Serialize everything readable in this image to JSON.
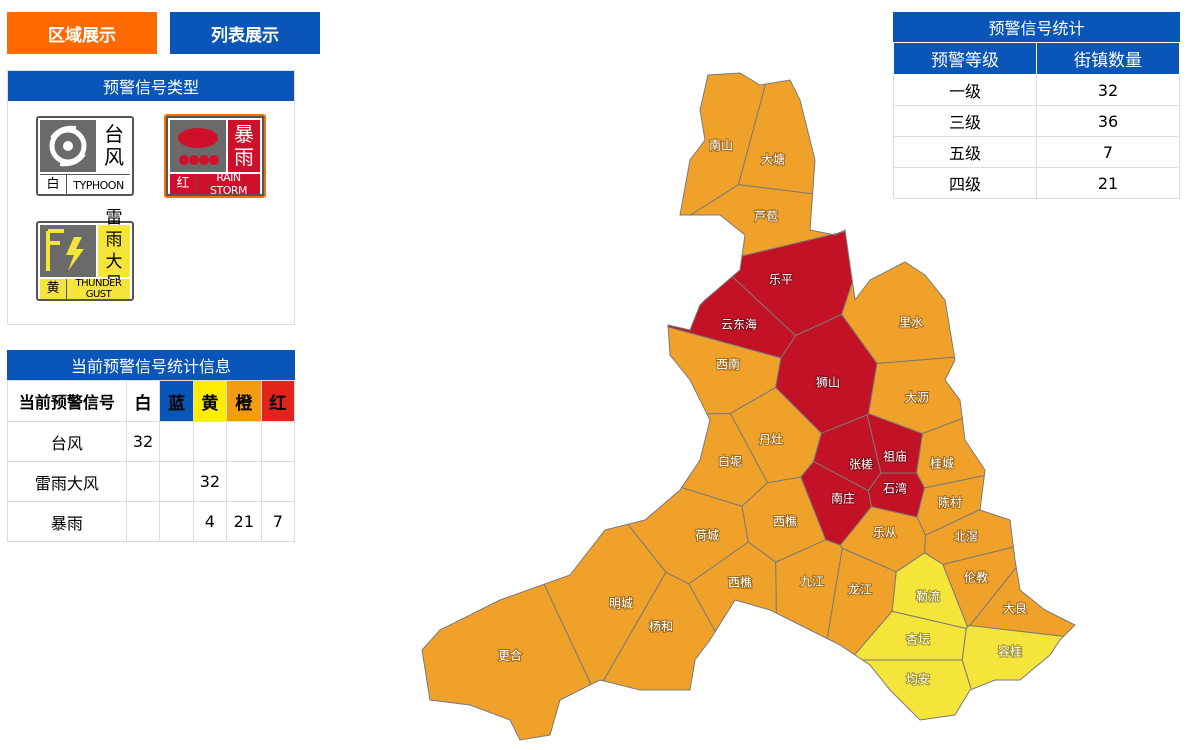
{
  "tabs": [
    "区域展示",
    "列表展示"
  ],
  "signal_types": {
    "title": "预警信号类型",
    "items": [
      {
        "name": "台风",
        "level": "白",
        "en": "TYPHOON"
      },
      {
        "name": "暴雨",
        "level": "红",
        "en": "RAIN STORM"
      },
      {
        "name": "雷雨大风",
        "level": "黄",
        "en": "THUNDER GUST"
      }
    ]
  },
  "current_stats": {
    "title": "当前预警信号统计信息",
    "header": [
      "当前预警信号",
      "白",
      "蓝",
      "黄",
      "橙",
      "红"
    ],
    "rows": [
      [
        "台风",
        32,
        null,
        null,
        null,
        null
      ],
      [
        "雷雨大风",
        null,
        null,
        32,
        null,
        null
      ],
      [
        "暴雨",
        null,
        null,
        4,
        21,
        7
      ]
    ]
  },
  "summary": {
    "title": "预警信号统计",
    "header": [
      "预警等级",
      "街镇数量"
    ],
    "rows": [
      [
        "一级",
        32
      ],
      [
        "三级",
        36
      ],
      [
        "五级",
        7
      ],
      [
        "四级",
        21
      ]
    ]
  },
  "map": {
    "regions": [
      {
        "name": "南山",
        "color": "#f0a12a"
      },
      {
        "name": "大塘",
        "color": "#f0a12a"
      },
      {
        "name": "芦苞",
        "color": "#f0a12a"
      },
      {
        "name": "乐平",
        "color": "#c31225"
      },
      {
        "name": "云东海",
        "color": "#c31225"
      },
      {
        "name": "西南",
        "color": "#f0a12a"
      },
      {
        "name": "里水",
        "color": "#f0a12a"
      },
      {
        "name": "狮山",
        "color": "#c31225"
      },
      {
        "name": "大沥",
        "color": "#f0a12a"
      },
      {
        "name": "丹灶",
        "color": "#f0a12a"
      },
      {
        "name": "白坭",
        "color": "#f0a12a"
      },
      {
        "name": "祖庙",
        "color": "#c31225"
      },
      {
        "name": "张槎",
        "color": "#c31225"
      },
      {
        "name": "桂城",
        "color": "#f0a12a"
      },
      {
        "name": "石湾",
        "color": "#c31225"
      },
      {
        "name": "南庄",
        "color": "#c31225"
      },
      {
        "name": "陈村",
        "color": "#f0a12a"
      },
      {
        "name": "荷城",
        "color": "#f0a12a"
      },
      {
        "name": "西樵",
        "color": "#f0a12a"
      },
      {
        "name": "乐从",
        "color": "#f0a12a"
      },
      {
        "name": "北滘",
        "color": "#f0a12a"
      },
      {
        "name": "西樵",
        "color": "#f0a12a"
      },
      {
        "name": "九江",
        "color": "#f0a12a"
      },
      {
        "name": "龙江",
        "color": "#f0a12a"
      },
      {
        "name": "勒流",
        "color": "#f5e43a"
      },
      {
        "name": "伦教",
        "color": "#f0a12a"
      },
      {
        "name": "大良",
        "color": "#f0a12a"
      },
      {
        "name": "明城",
        "color": "#f0a12a"
      },
      {
        "name": "杨和",
        "color": "#f0a12a"
      },
      {
        "name": "杏坛",
        "color": "#f5e43a"
      },
      {
        "name": "容桂",
        "color": "#f5e43a"
      },
      {
        "name": "更合",
        "color": "#f0a12a"
      },
      {
        "name": "均安",
        "color": "#f5e43a"
      }
    ]
  }
}
